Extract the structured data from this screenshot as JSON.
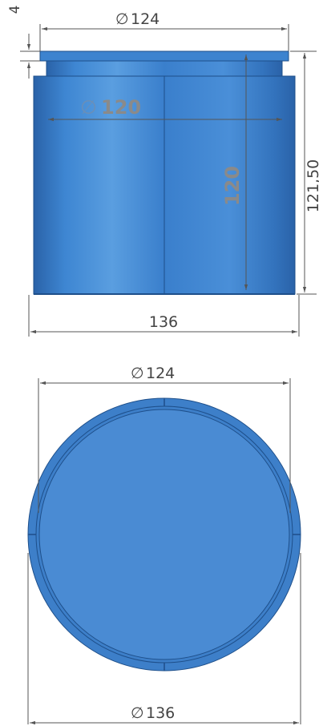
{
  "side_view": {
    "top_diameter": "124",
    "rim_height": "4",
    "inner_diameter": "120",
    "inner_height": "120",
    "total_height": "121,50",
    "base_width": "136"
  },
  "top_view": {
    "inner_diameter": "124",
    "outer_diameter": "136"
  },
  "diameter_symbol": "∅",
  "colors": {
    "body": "#3a7fcc",
    "body_dark": "#2a62a8",
    "body_light": "#5a9ee0",
    "dimension_line": "#555555",
    "gray_label": "#8a8a8a"
  }
}
